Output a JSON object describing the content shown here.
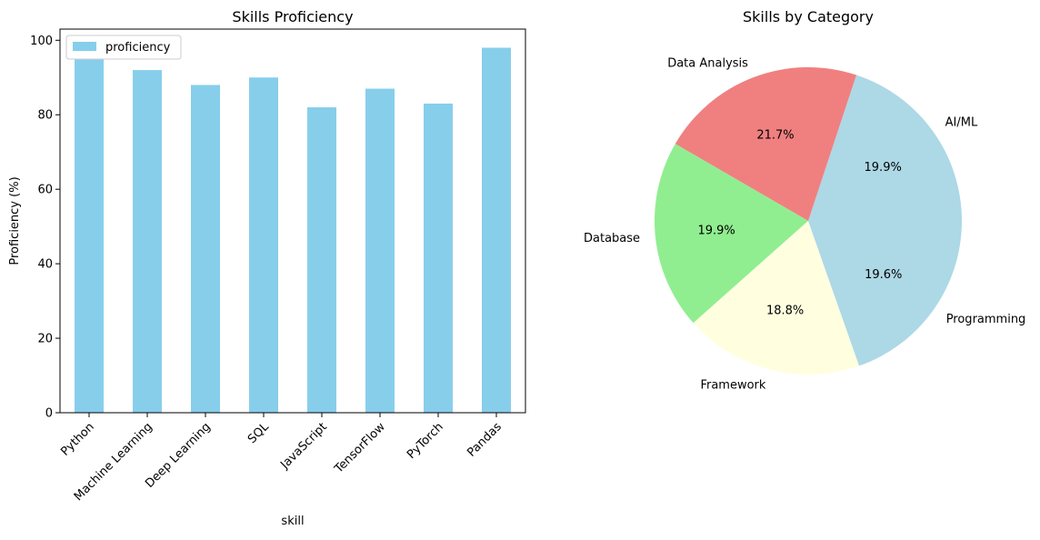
{
  "chart_data": [
    {
      "type": "bar",
      "title": "Skills Proficiency",
      "xlabel": "skill",
      "ylabel": "Proficiency (%)",
      "categories": [
        "Python",
        "Machine Learning",
        "Deep Learning",
        "SQL",
        "JavaScript",
        "TensorFlow",
        "PyTorch",
        "Pandas"
      ],
      "series": [
        {
          "name": "proficiency",
          "values": [
            95,
            92,
            88,
            90,
            82,
            87,
            83,
            98
          ],
          "color": "#87ceeb"
        }
      ],
      "ylim": [
        0,
        103
      ],
      "yticks": [
        "0",
        "20",
        "40",
        "60",
        "80",
        "100"
      ],
      "legend": "upper-left",
      "grid": false
    },
    {
      "type": "pie",
      "title": "Skills by Category",
      "slices": [
        {
          "label": "AI/ML",
          "percent": "19.9%",
          "value": 19.9,
          "color": "#add8e6"
        },
        {
          "label": "Data Analysis",
          "percent": "21.7%",
          "value": 21.7,
          "color": "#f08080"
        },
        {
          "label": "Database",
          "percent": "19.9%",
          "value": 19.9,
          "color": "#90ee90"
        },
        {
          "label": "Framework",
          "percent": "18.8%",
          "value": 18.8,
          "color": "#ffffe0"
        },
        {
          "label": "Programming",
          "percent": "19.6%",
          "value": 19.6,
          "color": "#add8e6"
        }
      ]
    }
  ]
}
